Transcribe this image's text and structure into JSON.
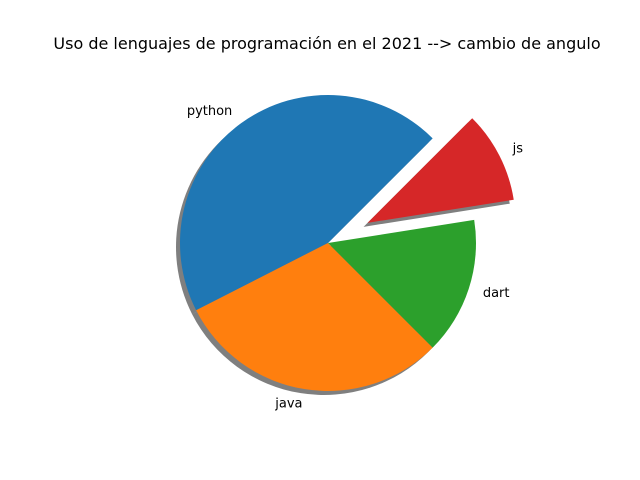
{
  "chart_data": {
    "type": "pie",
    "title": "Uso de lenguajes de programación en el 2021 --> cambio de angulo",
    "labels": [
      "python",
      "java",
      "dart",
      "js"
    ],
    "values": [
      45,
      30,
      15,
      10
    ],
    "colors": [
      "#1f77b4",
      "#ff7f0e",
      "#2ca02c",
      "#d62728"
    ],
    "start_angle_deg": 45,
    "explode": [
      0,
      0,
      0,
      0.3
    ],
    "shadow": true,
    "legend": "none"
  }
}
